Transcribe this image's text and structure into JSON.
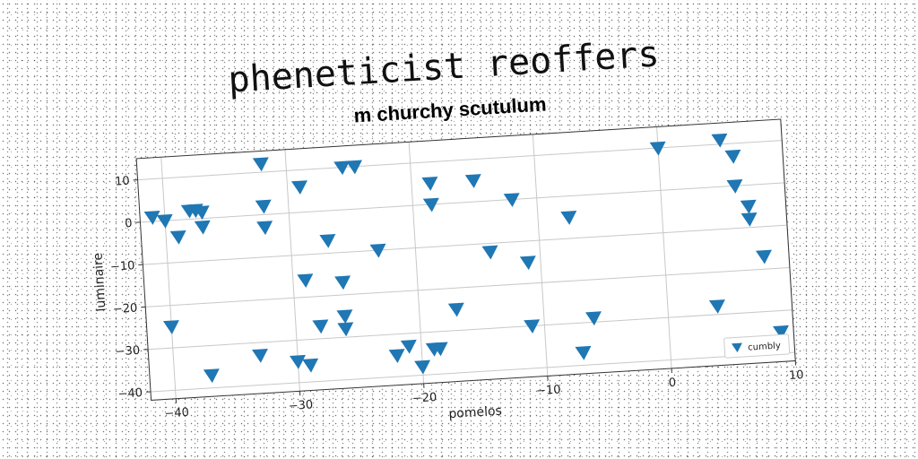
{
  "chart_data": {
    "type": "scatter",
    "title": "pheneticist reoffers",
    "subtitle": "m churchy scutulum",
    "xlabel": "pomelos",
    "ylabel": "luminaire",
    "xlim": [
      -42,
      10
    ],
    "ylim": [
      -42,
      15
    ],
    "xticks": [
      -40,
      -30,
      -20,
      -10,
      0,
      10
    ],
    "yticks": [
      -40,
      -30,
      -20,
      -10,
      0,
      10
    ],
    "grid": true,
    "legend_position": "bottom-right",
    "marker": "triangle-down",
    "series": [
      {
        "name": "cumbly",
        "color": "#1f77b4",
        "points": [
          [
            -41,
            1
          ],
          [
            -40,
            0
          ],
          [
            -39,
            -4
          ],
          [
            -38,
            2
          ],
          [
            -37.5,
            2
          ],
          [
            -37,
            1.5
          ],
          [
            -37,
            -2
          ],
          [
            -40,
            -25
          ],
          [
            -37,
            -37
          ],
          [
            -32,
            12
          ],
          [
            -32,
            2
          ],
          [
            -32,
            -3
          ],
          [
            -33,
            -33
          ],
          [
            -29,
            6
          ],
          [
            -29,
            -16
          ],
          [
            -30,
            -35
          ],
          [
            -29,
            -36
          ],
          [
            -27,
            -7
          ],
          [
            -28,
            -27
          ],
          [
            -26,
            -17
          ],
          [
            -26,
            -25
          ],
          [
            -26,
            -28
          ],
          [
            -25.5,
            10
          ],
          [
            -24.5,
            10
          ],
          [
            -23,
            -10
          ],
          [
            -22,
            -35
          ],
          [
            -21,
            -33
          ],
          [
            -20,
            -38
          ],
          [
            -19,
            -34
          ],
          [
            -18.5,
            -34
          ],
          [
            -18.5,
            5
          ],
          [
            -18.5,
            0
          ],
          [
            -17,
            -25
          ],
          [
            -15,
            5
          ],
          [
            -14,
            -12
          ],
          [
            -12,
            0
          ],
          [
            -11,
            -30
          ],
          [
            -11,
            -15
          ],
          [
            -7.5,
            -5
          ],
          [
            -7,
            -37
          ],
          [
            -6,
            -29
          ],
          [
            0,
            10
          ],
          [
            4,
            -28
          ],
          [
            5,
            11
          ],
          [
            6,
            7
          ],
          [
            6,
            0
          ],
          [
            7,
            -5
          ],
          [
            7,
            -8
          ],
          [
            8,
            -17
          ],
          [
            9,
            -35
          ]
        ]
      }
    ]
  }
}
